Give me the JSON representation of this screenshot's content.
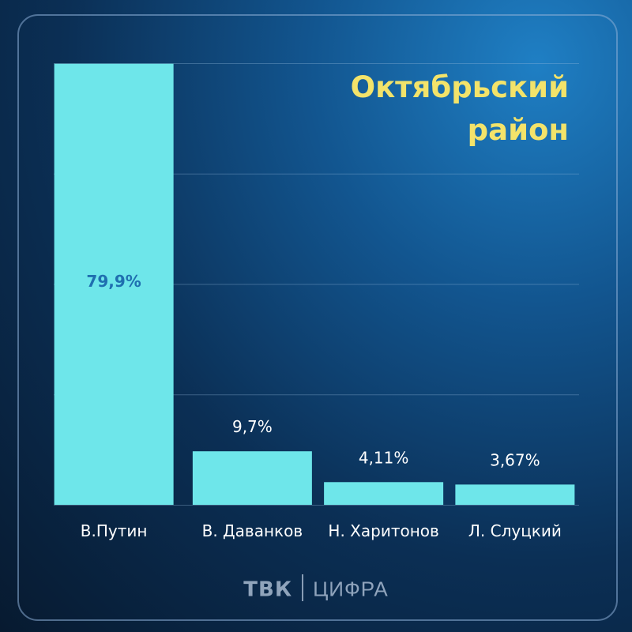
{
  "chart_data": {
    "type": "bar",
    "title": "Октябрьский\nрайон",
    "categories": [
      "В.Путин",
      "В. Даванков",
      "Н. Харитонов",
      "Л. Слуцкий"
    ],
    "values": [
      79.9,
      9.7,
      4.11,
      3.67
    ],
    "value_labels": [
      "79,9%",
      "9,7%",
      "4,11%",
      "3,67%"
    ],
    "ylim": [
      0,
      80
    ],
    "grid": true,
    "bar_color": "#6ee6ea",
    "inside_label_color": "#1f6fb0",
    "outside_label_color": "#ffffff",
    "title_color": "#f3e36a"
  },
  "logo": {
    "brand": "ТВК",
    "sub": "ЦИФРА"
  }
}
